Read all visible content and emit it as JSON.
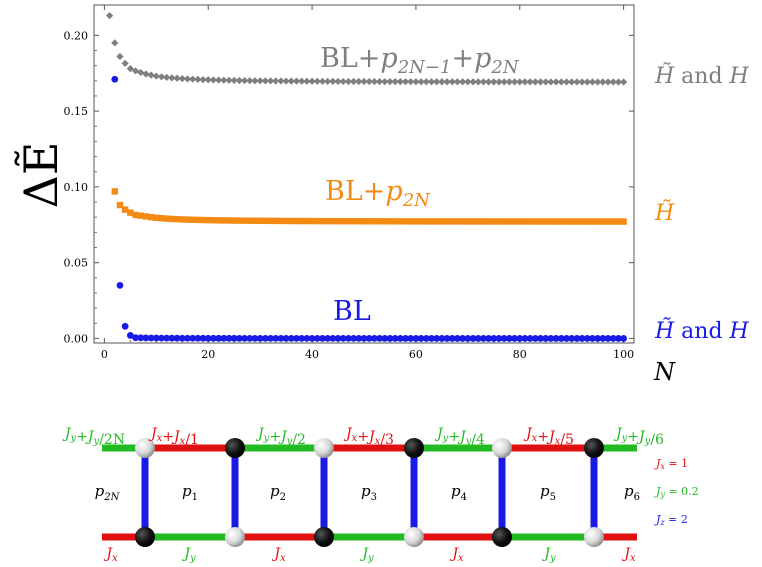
{
  "chart_data": {
    "type": "scatter",
    "ylabel": "ΔẼ",
    "xlabel": "N",
    "xlim": [
      -2,
      102
    ],
    "ylim": [
      -0.003,
      0.22
    ],
    "xticks": [
      0,
      20,
      40,
      60,
      80,
      100
    ],
    "yticks": [
      0.0,
      0.05,
      0.1,
      0.15,
      0.2
    ],
    "ytick_labels": [
      "0.00",
      "0.05",
      "0.10",
      "0.15",
      "0.20"
    ],
    "grid": false,
    "series": [
      {
        "name": "BL+p₂N₋₁+p₂N",
        "right_label": "H̃ and H",
        "color": "#7f7f7f",
        "marker": "diamond",
        "first_points": [
          [
            1,
            0.213
          ],
          [
            2,
            0.195
          ],
          [
            3,
            0.186
          ],
          [
            4,
            0.1815
          ],
          [
            5,
            0.178
          ],
          [
            6,
            0.1765
          ],
          [
            7,
            0.1755
          ],
          [
            8,
            0.1745
          ]
        ],
        "asymptote": 0.169
      },
      {
        "name": "BL+p₂N",
        "right_label": "H̃",
        "color": "#f28a13",
        "marker": "square",
        "first_points": [
          [
            2,
            0.097
          ],
          [
            3,
            0.088
          ],
          [
            4,
            0.085
          ],
          [
            5,
            0.083
          ],
          [
            6,
            0.0815
          ],
          [
            7,
            0.081
          ],
          [
            8,
            0.0805
          ]
        ],
        "asymptote": 0.077
      },
      {
        "name": "BL",
        "right_label": "H̃ and H",
        "color": "#1a1ae6",
        "marker": "circle",
        "first_points": [
          [
            2,
            0.171
          ],
          [
            3,
            0.035
          ],
          [
            4,
            0.008
          ],
          [
            5,
            0.002
          ],
          [
            6,
            0.0005
          ]
        ],
        "asymptote": 0.0
      }
    ]
  },
  "ladder": {
    "top_labels": [
      "Jy+Jy/2N",
      "Jx+Jx/1",
      "Jy+Jy/2",
      "Jx+Jx/3",
      "Jy+Jy/4",
      "Jx+Jx/5",
      "Jy+Jy/6"
    ],
    "bottom_labels": [
      "Jx",
      "Jy",
      "Jx",
      "Jy",
      "Jx",
      "Jy",
      "Jx"
    ],
    "plaquettes": [
      "p2N",
      "p1",
      "p2",
      "p3",
      "p4",
      "p5",
      "p6"
    ],
    "legend": [
      "Jx = 1",
      "Jy = 0.2",
      "Jz = 2"
    ],
    "colors": {
      "x": "#e01010",
      "y": "#22bb22",
      "z": "#1a1ae6"
    }
  }
}
